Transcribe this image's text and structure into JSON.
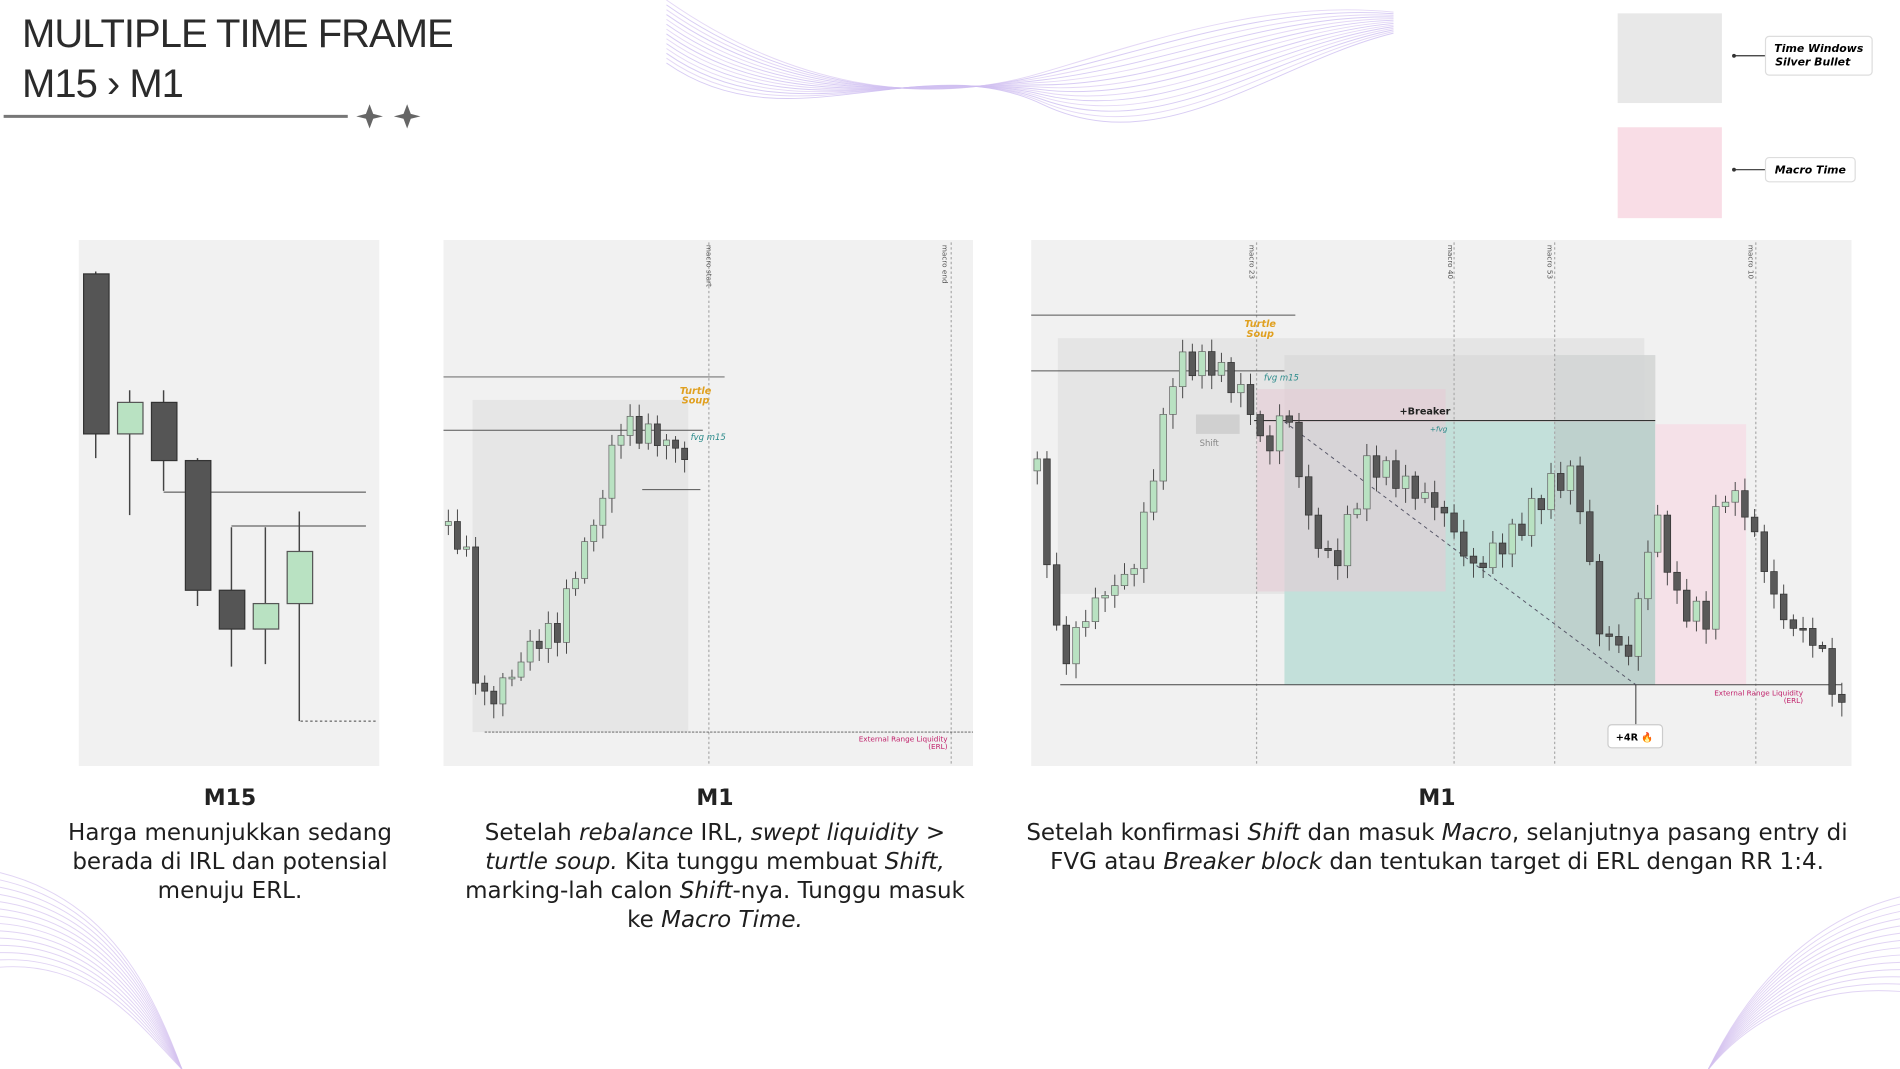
{
  "header": {
    "title_lines": [
      "MULTIPLE TIME FRAME",
      "M15 › M1"
    ]
  },
  "legend": [
    {
      "label_lines": [
        "Time Windows",
        "Silver Bullet"
      ]
    },
    {
      "label_lines": [
        "Macro Time"
      ]
    }
  ],
  "panels": [
    {
      "heading": "M15",
      "caption": [
        "Harga menunjukkan sedang berada di IRL dan potensial menuju ERL."
      ]
    },
    {
      "heading": "M1",
      "caption": [
        "Setelah ",
        "rebalance",
        " IRL, ",
        "swept liquidity",
        " > ",
        "turtle soup.",
        " Kita tunggu membuat ",
        "Shift,",
        " marking-lah calon ",
        "Shift",
        "-nya. Tunggu masuk ke ",
        "Macro Time."
      ],
      "annotations": {
        "macro_start": "macro start",
        "macro_end": "macro end",
        "turtle_soup": [
          "Turtle",
          "Soup"
        ],
        "fvg": "fvg m15",
        "erl": [
          "External Range Liquidity",
          "(ERL)"
        ]
      }
    },
    {
      "heading": "M1",
      "caption": [
        "Setelah konfirmasi ",
        "Shift",
        " dan masuk ",
        "Macro",
        ", selanjutnya pasang entry di FVG atau ",
        "Breaker block",
        " dan tentukan target di ERL dengan RR 1:4."
      ],
      "annotations": {
        "macros": [
          "macro 23",
          "macro 40",
          "macro 53",
          "macro 10"
        ],
        "turtle_soup": [
          "Turtle",
          "Soup"
        ],
        "fvg": "fvg m15",
        "breaker": "+Breaker",
        "fvg_plus": "+fvg",
        "shift": "Shift",
        "erl": [
          "External Range Liquidity",
          "(ERL)"
        ],
        "target": "+4R 🔥"
      }
    }
  ]
}
